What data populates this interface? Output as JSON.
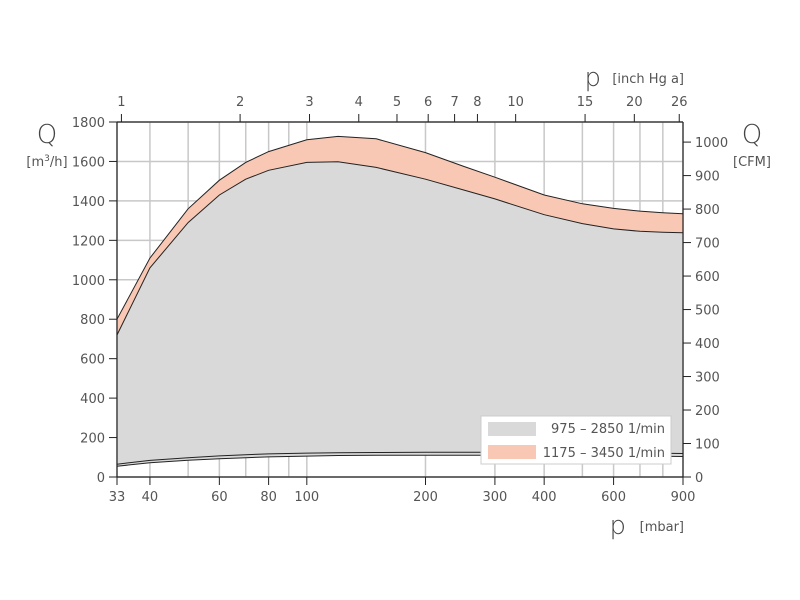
{
  "chart_data": {
    "type": "area",
    "title": "",
    "x_axis_bottom": {
      "symbol": "p",
      "unit": "[mbar]",
      "scale": "log",
      "range": [
        33,
        900
      ],
      "ticks": [
        33,
        40,
        60,
        80,
        100,
        200,
        300,
        400,
        600,
        900
      ],
      "gridlines": [
        33,
        40,
        50,
        60,
        70,
        80,
        90,
        100,
        200,
        300,
        400,
        500,
        600,
        700,
        800,
        900
      ]
    },
    "x_axis_top": {
      "symbol": "p",
      "unit": "[inch Hg a]",
      "scale": "log",
      "ticks": [
        1,
        2,
        3,
        4,
        5,
        6,
        7,
        8,
        10,
        15,
        20,
        26
      ]
    },
    "y_axis_left": {
      "symbol": "Q",
      "unit_prefix": "[m",
      "unit_sup": "3",
      "unit_suffix": "/h]",
      "range": [
        0,
        1800
      ],
      "ticks": [
        0,
        200,
        400,
        600,
        800,
        1000,
        1200,
        1400,
        1600,
        1800
      ]
    },
    "y_axis_right": {
      "symbol": "Q",
      "unit": "[CFM]",
      "range": [
        0,
        1060
      ],
      "ticks": [
        0,
        100,
        200,
        300,
        400,
        500,
        600,
        700,
        800,
        900,
        1000
      ]
    },
    "grid": true,
    "legend_position": "bottom-right",
    "series": [
      {
        "name": "975 – 2850  1/min",
        "color": "#d9d9d9",
        "x": [
          33,
          40,
          50,
          60,
          70,
          80,
          100,
          120,
          150,
          200,
          250,
          300,
          400,
          500,
          600,
          700,
          800,
          900
        ],
        "upper": [
          720,
          1060,
          1290,
          1430,
          1510,
          1555,
          1595,
          1598,
          1570,
          1510,
          1455,
          1410,
          1330,
          1285,
          1258,
          1246,
          1241,
          1238
        ],
        "lower": [
          55,
          72,
          85,
          93,
          98,
          102,
          106,
          109,
          110,
          110,
          110,
          110,
          109,
          108,
          107,
          106,
          105,
          104
        ]
      },
      {
        "name": "1175 – 3450  1/min",
        "color": "#f8c8b4",
        "x": [
          33,
          40,
          50,
          60,
          70,
          80,
          100,
          120,
          150,
          200,
          250,
          300,
          400,
          500,
          600,
          700,
          800,
          900
        ],
        "upper": [
          800,
          1110,
          1360,
          1505,
          1595,
          1650,
          1710,
          1727,
          1715,
          1645,
          1575,
          1520,
          1430,
          1385,
          1362,
          1348,
          1340,
          1335
        ],
        "lower": [
          65,
          84,
          98,
          107,
          113,
          117,
          121,
          123,
          124,
          125,
          125,
          125,
          124,
          123,
          122,
          121,
          120,
          119
        ]
      }
    ]
  }
}
